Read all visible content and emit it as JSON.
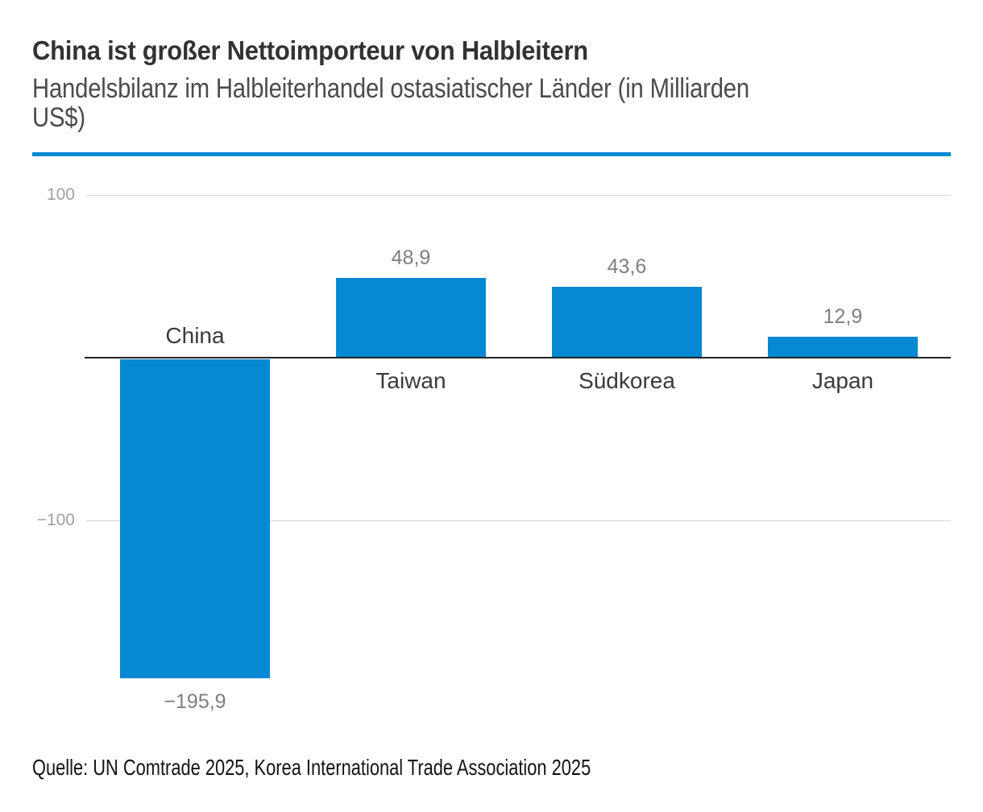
{
  "chart_data": {
    "type": "bar",
    "title": "China ist großer Nettoimporteur von Halbleitern",
    "subtitle": "Handelsbilanz im Halbleiterhandel ostasiatischer Länder (in Milliarden\nUS$)",
    "unit": "Milliarden US$",
    "categories": [
      "China",
      "Taiwan",
      "Südkorea",
      "Japan"
    ],
    "values": [
      -195.9,
      48.9,
      43.6,
      12.9
    ],
    "value_labels": [
      "−195,9",
      "48,9",
      "43,6",
      "12,9"
    ],
    "yticks": [
      {
        "value": 100,
        "label": "100"
      },
      {
        "value": -100,
        "label": "−100"
      }
    ],
    "ylim": [
      -230,
      120
    ],
    "grid": "horizontal",
    "legend": "none",
    "bar_color": "#0689d2"
  },
  "divider_color": "#0689d2",
  "source": "Quelle: UN Comtrade 2025, Korea International Trade Association 2025"
}
